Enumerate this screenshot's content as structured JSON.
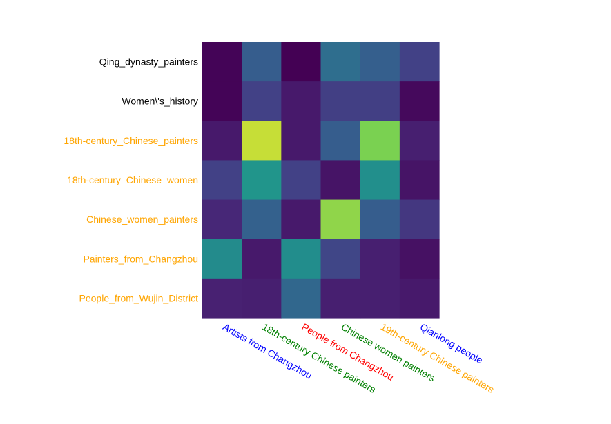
{
  "chart_data": {
    "type": "heatmap",
    "title": "",
    "xlabel": "",
    "ylabel": "",
    "colormap": "viridis",
    "value_range": [
      0,
      1
    ],
    "rows": [
      {
        "label": "Qing_dynasty_painters",
        "color": "#000000"
      },
      {
        "label": "Women\\'s_history",
        "color": "#000000"
      },
      {
        "label": "18th-century_Chinese_painters",
        "color": "#ffa500"
      },
      {
        "label": "18th-century_Chinese_women",
        "color": "#ffa500"
      },
      {
        "label": "Chinese_women_painters",
        "color": "#ffa500"
      },
      {
        "label": "Painters_from_Changzhou",
        "color": "#ffa500"
      },
      {
        "label": "People_from_Wujin_District",
        "color": "#ffa500"
      }
    ],
    "columns": [
      {
        "label": "Artists from Changzhou",
        "color": "#0000ff"
      },
      {
        "label": "18th-century Chinese painters",
        "color": "#008000"
      },
      {
        "label": "People from Changzhou",
        "color": "#ff0000"
      },
      {
        "label": "Chinese women painters",
        "color": "#008000"
      },
      {
        "label": "19th-century Chinese painters",
        "color": "#ffa500"
      },
      {
        "label": "Qianlong people",
        "color": "#0000ff"
      }
    ],
    "values": [
      [
        0.01,
        0.37,
        0.0,
        0.45,
        0.38,
        0.24
      ],
      [
        0.01,
        0.24,
        0.09,
        0.23,
        0.23,
        0.03
      ],
      [
        0.09,
        0.95,
        0.09,
        0.37,
        0.88,
        0.11
      ],
      [
        0.24,
        0.65,
        0.24,
        0.07,
        0.62,
        0.07
      ],
      [
        0.14,
        0.39,
        0.09,
        0.9,
        0.37,
        0.2
      ],
      [
        0.6,
        0.09,
        0.61,
        0.26,
        0.11,
        0.06
      ],
      [
        0.12,
        0.11,
        0.42,
        0.11,
        0.11,
        0.09
      ]
    ]
  }
}
